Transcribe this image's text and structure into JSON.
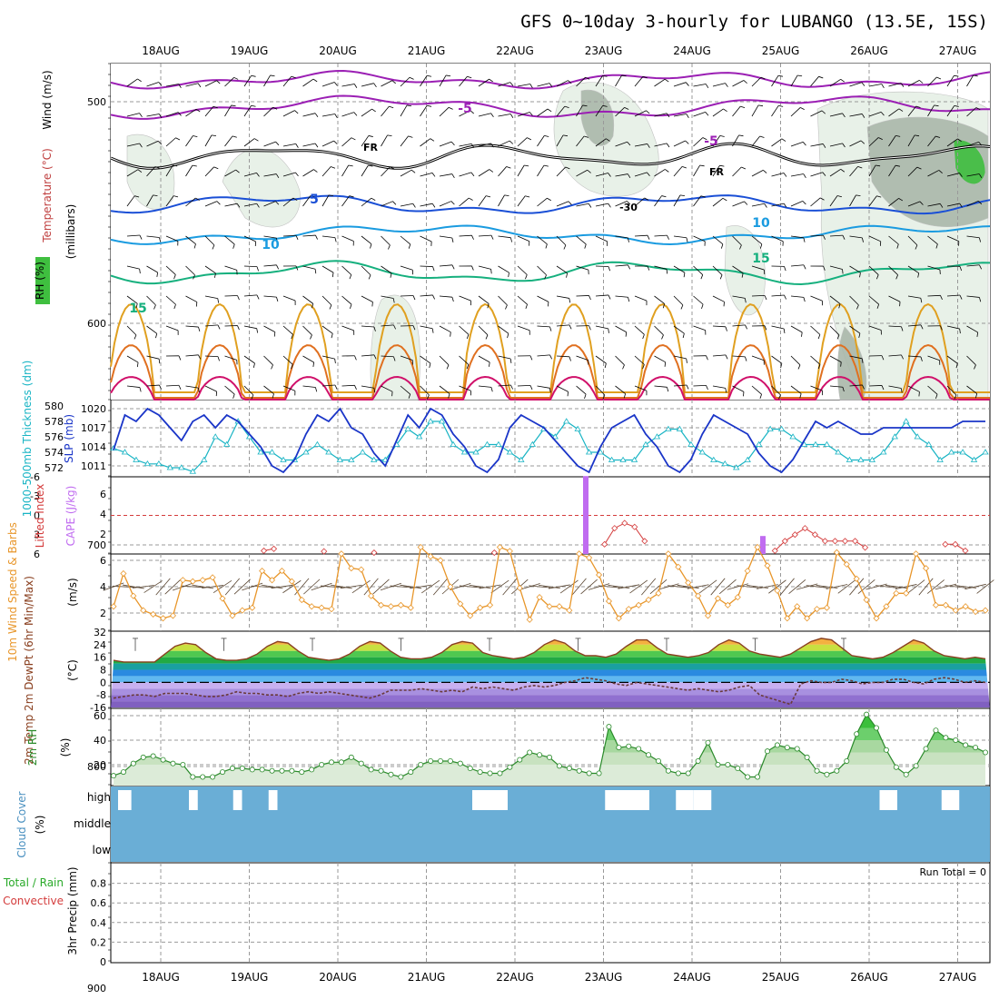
{
  "title": "GFS 0~10day 3-hourly for LUBANGO (13.5E, 15S)",
  "dates": [
    "18AUG",
    "19AUG",
    "20AUG",
    "21AUG",
    "22AUG",
    "23AUG",
    "24AUG",
    "25AUG",
    "26AUG",
    "27AUG"
  ],
  "colors": {
    "freezing": "#000000",
    "t_neg5": "#9b1fb4",
    "t_5": "#1a4fd6",
    "t_10": "#1a9be0",
    "t_15": "#16b07e",
    "t_20": "#e0a020",
    "t_25": "#e07020",
    "t_30": "#d0106a",
    "rh_light": "#e6f0e6",
    "rh_mid": "#aab8aa",
    "rh_dark": "#3fbf3f",
    "slp": "#1a35c8",
    "thickness": "#18b4c4",
    "cape": "#c06cf0",
    "lifted": "#d43c3c",
    "wind10m": "#e8962a",
    "barb": "#5a4632",
    "temp": "#8a4020",
    "dewpt": "#6a3a3a",
    "rh2m": "#2a8a2a",
    "cloud": "#6aaed6"
  },
  "panels": [
    {
      "id": "upper_air",
      "labels": [
        "Wind (m/s)",
        "Temperature (°C)",
        "RH (%)",
        "(millibars)"
      ],
      "yticks": [
        "500",
        "600",
        "700",
        "800",
        "900"
      ],
      "annotations": [
        "-5",
        "-5",
        "5",
        "10",
        "10",
        "15",
        "15",
        "FR",
        "FR",
        "-30"
      ]
    },
    {
      "id": "thickness_slp",
      "labels": [
        "1000-500mb Thickness (dm)",
        "SLP (mb)"
      ],
      "yticks_left": [
        "580",
        "578",
        "576",
        "574",
        "572"
      ],
      "yticks_right": [
        "1020",
        "1017",
        "1014",
        "1011"
      ]
    },
    {
      "id": "cape_li",
      "labels": [
        "Lifted Index",
        "CAPE (J/kg)"
      ],
      "yticks_left": [
        "-6",
        "-3",
        "0",
        "3",
        "6"
      ],
      "yticks_right": [
        "6",
        "4",
        "2"
      ]
    },
    {
      "id": "wind10m",
      "labels": [
        "10m Wind Speed & Barbs",
        "(m/s)"
      ],
      "yticks": [
        "6",
        "4",
        "2"
      ]
    },
    {
      "id": "temp2m",
      "labels": [
        "2m Temp 2m DewPt (6hr Min/Max)",
        "(°C)"
      ],
      "yticks": [
        "32",
        "24",
        "16",
        "8",
        "0",
        "-8",
        "-16"
      ]
    },
    {
      "id": "rh2m",
      "labels": [
        "2m RH",
        "(%)"
      ],
      "yticks": [
        "60",
        "40",
        "20"
      ]
    },
    {
      "id": "cloud",
      "labels": [
        "Cloud Cover",
        "(%)"
      ],
      "yticks": [
        "high",
        "middle",
        "low"
      ]
    },
    {
      "id": "precip",
      "labels": [
        "Total / Rain",
        "Convective",
        "3hr Precip (mm)"
      ],
      "yticks": [
        "0.8",
        "0.6",
        "0.4",
        "0.2",
        "0"
      ],
      "run_total": "Run Total = 0"
    }
  ],
  "chart_data": [
    {
      "type": "line",
      "id": "thickness_slp",
      "series": [
        {
          "name": "SLP",
          "unit": "mb",
          "values": [
            1013.5,
            1019,
            1018,
            1020,
            1019,
            1017,
            1015,
            1018,
            1019,
            1017,
            1019,
            1018,
            1016,
            1014,
            1011,
            1010,
            1012,
            1016,
            1019,
            1018,
            1020,
            1017,
            1016,
            1013,
            1011,
            1015,
            1019,
            1017,
            1020,
            1019,
            1016,
            1014,
            1011,
            1010,
            1012,
            1017,
            1019,
            1018,
            1017,
            1015,
            1013,
            1011,
            1010,
            1014,
            1017,
            1018,
            1019,
            1016,
            1014,
            1011,
            1010,
            1012,
            1016,
            1019,
            1018,
            1017,
            1016,
            1013,
            1011,
            1010,
            1012,
            1015,
            1018,
            1017,
            1018,
            1017,
            1016,
            1016,
            1017,
            1017,
            1017,
            1017,
            1017,
            1017,
            1017,
            1018,
            1018,
            1018
          ]
        },
        {
          "name": "Thickness",
          "unit": "dm",
          "values": [
            574.5,
            574,
            573,
            572.5,
            572.5,
            572,
            572,
            571.5,
            573,
            576,
            575,
            578,
            576,
            574,
            574,
            573,
            573,
            574,
            575,
            574,
            573,
            573,
            574,
            573,
            573,
            575,
            577,
            576,
            578,
            578,
            575,
            574,
            574,
            575,
            575,
            574,
            573,
            575,
            577,
            576,
            578,
            577,
            574,
            574,
            573,
            573,
            573,
            575,
            576,
            577,
            577,
            575,
            574,
            573,
            572.5,
            572,
            573,
            575,
            577,
            577,
            576,
            575,
            575,
            575,
            574,
            573,
            573,
            573,
            574,
            576,
            578,
            576,
            575,
            573,
            574,
            574,
            573,
            574
          ]
        }
      ]
    },
    {
      "type": "line",
      "id": "lifted_index",
      "unit": "°C",
      "values": [
        6,
        6,
        6,
        6,
        6,
        6,
        6,
        6,
        6,
        6,
        6,
        6,
        6,
        6,
        6,
        5.5,
        5.2,
        6,
        6,
        6,
        6,
        5.6,
        6,
        6,
        6,
        6,
        5.8,
        6,
        6,
        6,
        6,
        6,
        6,
        6,
        6,
        6,
        6,
        6,
        5.8,
        6,
        6,
        6,
        6,
        6,
        6,
        6,
        6,
        6,
        6,
        4.5,
        2,
        1.2,
        1.8,
        4,
        6,
        6,
        6,
        6,
        6,
        6,
        6,
        6,
        6,
        6,
        6,
        6,
        5.5,
        4,
        3,
        2,
        3,
        4,
        4,
        4,
        4,
        5,
        6,
        6,
        6,
        6,
        6,
        6,
        6,
        4.5,
        4.5,
        5.5,
        6,
        6
      ],
      "cape_bars": [
        {
          "date_index": 4.8,
          "value": 7.8
        },
        {
          "date_index": 6.8,
          "value": 1.8
        }
      ]
    },
    {
      "type": "line",
      "id": "wind10m_speed",
      "unit": "m/s",
      "values": [
        2.5,
        5,
        3.3,
        2.2,
        1.9,
        1.6,
        1.8,
        4.5,
        4.4,
        4.5,
        4.7,
        3.1,
        1.8,
        2.2,
        2.4,
        5.2,
        4.5,
        5.2,
        4.4,
        3,
        2.5,
        2.4,
        2.3,
        6.5,
        5.4,
        5.3,
        3.3,
        2.6,
        2.5,
        2.6,
        2.4,
        7,
        6.3,
        6,
        4,
        2.7,
        1.8,
        2.4,
        2.6,
        7,
        6.7,
        3.9,
        1.5,
        3.2,
        2.5,
        2.5,
        2.2,
        6.5,
        6.2,
        4.9,
        2.9,
        1.6,
        2.3,
        2.6,
        3,
        3.5,
        6.5,
        5.5,
        4.3,
        3.3,
        1.8,
        3.1,
        2.6,
        3.2,
        5.2,
        7,
        5.6,
        3.7,
        1.6,
        2.5,
        1.6,
        2.3,
        2.4,
        6.6,
        5.7,
        4.6,
        3,
        1.6,
        2.5,
        3.5,
        3.5,
        6.5,
        5.4,
        2.6,
        2.6,
        2.2,
        2.5,
        2.1,
        2.2
      ]
    },
    {
      "type": "line",
      "id": "temp2m",
      "unit": "°C",
      "series": [
        {
          "name": "2m Temp",
          "values": [
            14,
            13,
            13,
            13,
            13,
            18,
            23,
            25,
            24,
            19,
            15,
            14,
            14,
            15,
            18,
            23,
            26,
            25,
            20,
            16,
            15,
            14,
            15,
            18,
            23,
            26,
            25,
            20,
            16,
            15,
            15,
            16,
            19,
            24,
            26,
            25,
            19,
            17,
            16,
            15,
            16,
            19,
            24,
            27,
            25,
            20,
            17,
            17,
            16,
            18,
            23,
            27,
            27,
            22,
            18,
            17,
            16,
            17,
            19,
            24,
            27,
            25,
            20,
            18,
            17,
            16,
            18,
            22,
            26,
            28,
            27,
            22,
            17,
            16,
            15,
            16,
            19,
            23,
            27,
            25,
            20,
            17,
            16,
            15,
            16,
            15
          ]
        },
        {
          "name": "2m DewPt",
          "values": [
            -10,
            -9,
            -8,
            -8,
            -9,
            -7,
            -7,
            -7,
            -8,
            -9,
            -9,
            -8,
            -6,
            -7,
            -7,
            -8,
            -8,
            -9,
            -7,
            -6,
            -7,
            -6,
            -7,
            -8,
            -9,
            -10,
            -8,
            -5,
            -5,
            -5,
            -4,
            -5,
            -6,
            -5,
            -6,
            -3,
            -4,
            -3,
            -4,
            -5,
            -3,
            -2,
            -3,
            -2,
            0,
            1,
            3,
            2,
            1,
            -1,
            -2,
            0,
            -1,
            -2,
            -3,
            -4,
            -5,
            -4,
            -5,
            -6,
            -5,
            -3,
            -2,
            -8,
            -10,
            -12,
            -14,
            -1,
            1,
            0,
            0,
            2,
            1,
            -1,
            0,
            0,
            2,
            2,
            0,
            -1,
            2,
            3,
            2,
            0,
            1,
            0
          ]
        }
      ]
    },
    {
      "type": "area",
      "id": "rh2m",
      "unit": "%",
      "values": [
        11,
        14,
        21,
        26,
        27,
        24,
        21,
        20,
        10,
        10,
        10,
        14,
        17,
        17,
        16,
        16,
        15,
        15,
        15,
        14,
        16,
        20,
        22,
        22,
        26,
        21,
        16,
        15,
        12,
        10,
        14,
        20,
        23,
        23,
        23,
        21,
        17,
        14,
        13,
        13,
        18,
        24,
        30,
        28,
        26,
        19,
        17,
        15,
        13,
        13,
        51,
        34,
        35,
        33,
        28,
        23,
        15,
        13,
        13,
        23,
        38,
        20,
        20,
        17,
        10,
        10,
        31,
        36,
        34,
        33,
        26,
        15,
        12,
        15,
        23,
        45,
        61,
        50,
        32,
        18,
        12,
        19,
        33,
        48,
        42,
        40,
        36,
        34,
        30
      ]
    },
    {
      "type": "bar",
      "id": "cloud_cover",
      "unit": "%",
      "levels": [
        "high",
        "middle",
        "low"
      ],
      "high_clear_segments": [
        [
          0,
          0.15
        ],
        [
          0.8,
          0.9
        ],
        [
          1.3,
          1.4
        ],
        [
          1.7,
          1.8
        ],
        [
          4.0,
          4.4
        ],
        [
          5.5,
          6.0
        ],
        [
          6.3,
          6.5
        ],
        [
          6.5,
          6.7
        ],
        [
          8.6,
          8.8
        ],
        [
          9.3,
          9.5
        ]
      ]
    },
    {
      "type": "bar",
      "id": "precip",
      "unit": "mm",
      "ylim": [
        0,
        0.9
      ],
      "values": []
    }
  ]
}
